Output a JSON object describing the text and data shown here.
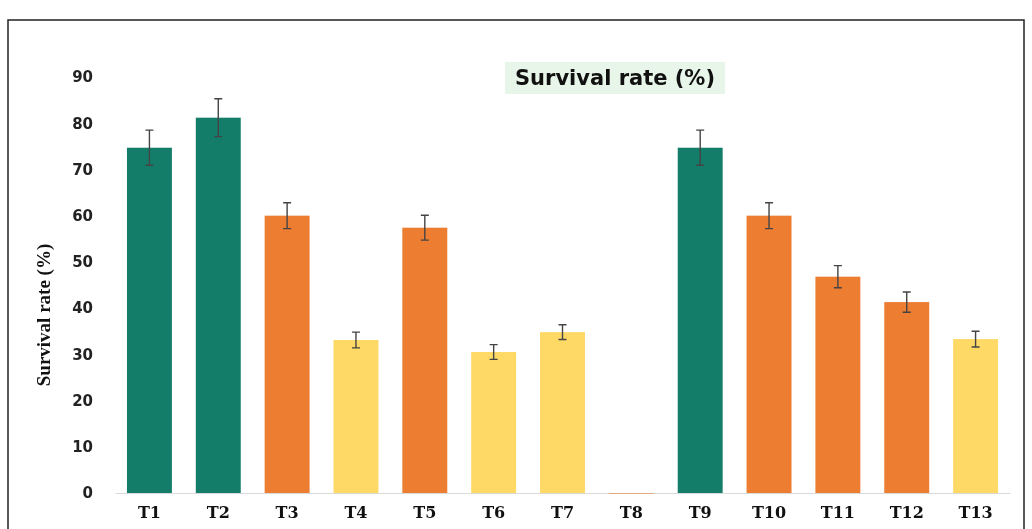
{
  "chart_data": {
    "type": "bar",
    "title": "Survival rate (%)",
    "ylabel": "Survival rate (%)",
    "categories": [
      "T1",
      "T2",
      "T3",
      "T4",
      "T5",
      "T6",
      "T7",
      "T8",
      "T9",
      "T10",
      "T11",
      "T12",
      "T13"
    ],
    "values": [
      74.7,
      81.2,
      60,
      33.1,
      57.4,
      30.5,
      34.8,
      0,
      74.7,
      60,
      46.8,
      41.3,
      33.3
    ],
    "errors": [
      3.8,
      4.1,
      2.8,
      1.7,
      2.7,
      1.6,
      1.6,
      null,
      3.8,
      2.8,
      2.4,
      2.2,
      1.7
    ],
    "colors": [
      "#147d6a",
      "#147d6a",
      "#ed7d31",
      "#ffd966",
      "#ed7d31",
      "#ffd966",
      "#ffd966",
      "#ed7d31",
      "#147d6a",
      "#ed7d31",
      "#ed7d31",
      "#ed7d31",
      "#ffd966"
    ],
    "ylim": [
      0,
      90
    ],
    "yticks": [
      0,
      10,
      20,
      30,
      40,
      50,
      60,
      70,
      80,
      90
    ],
    "grid": false
  }
}
